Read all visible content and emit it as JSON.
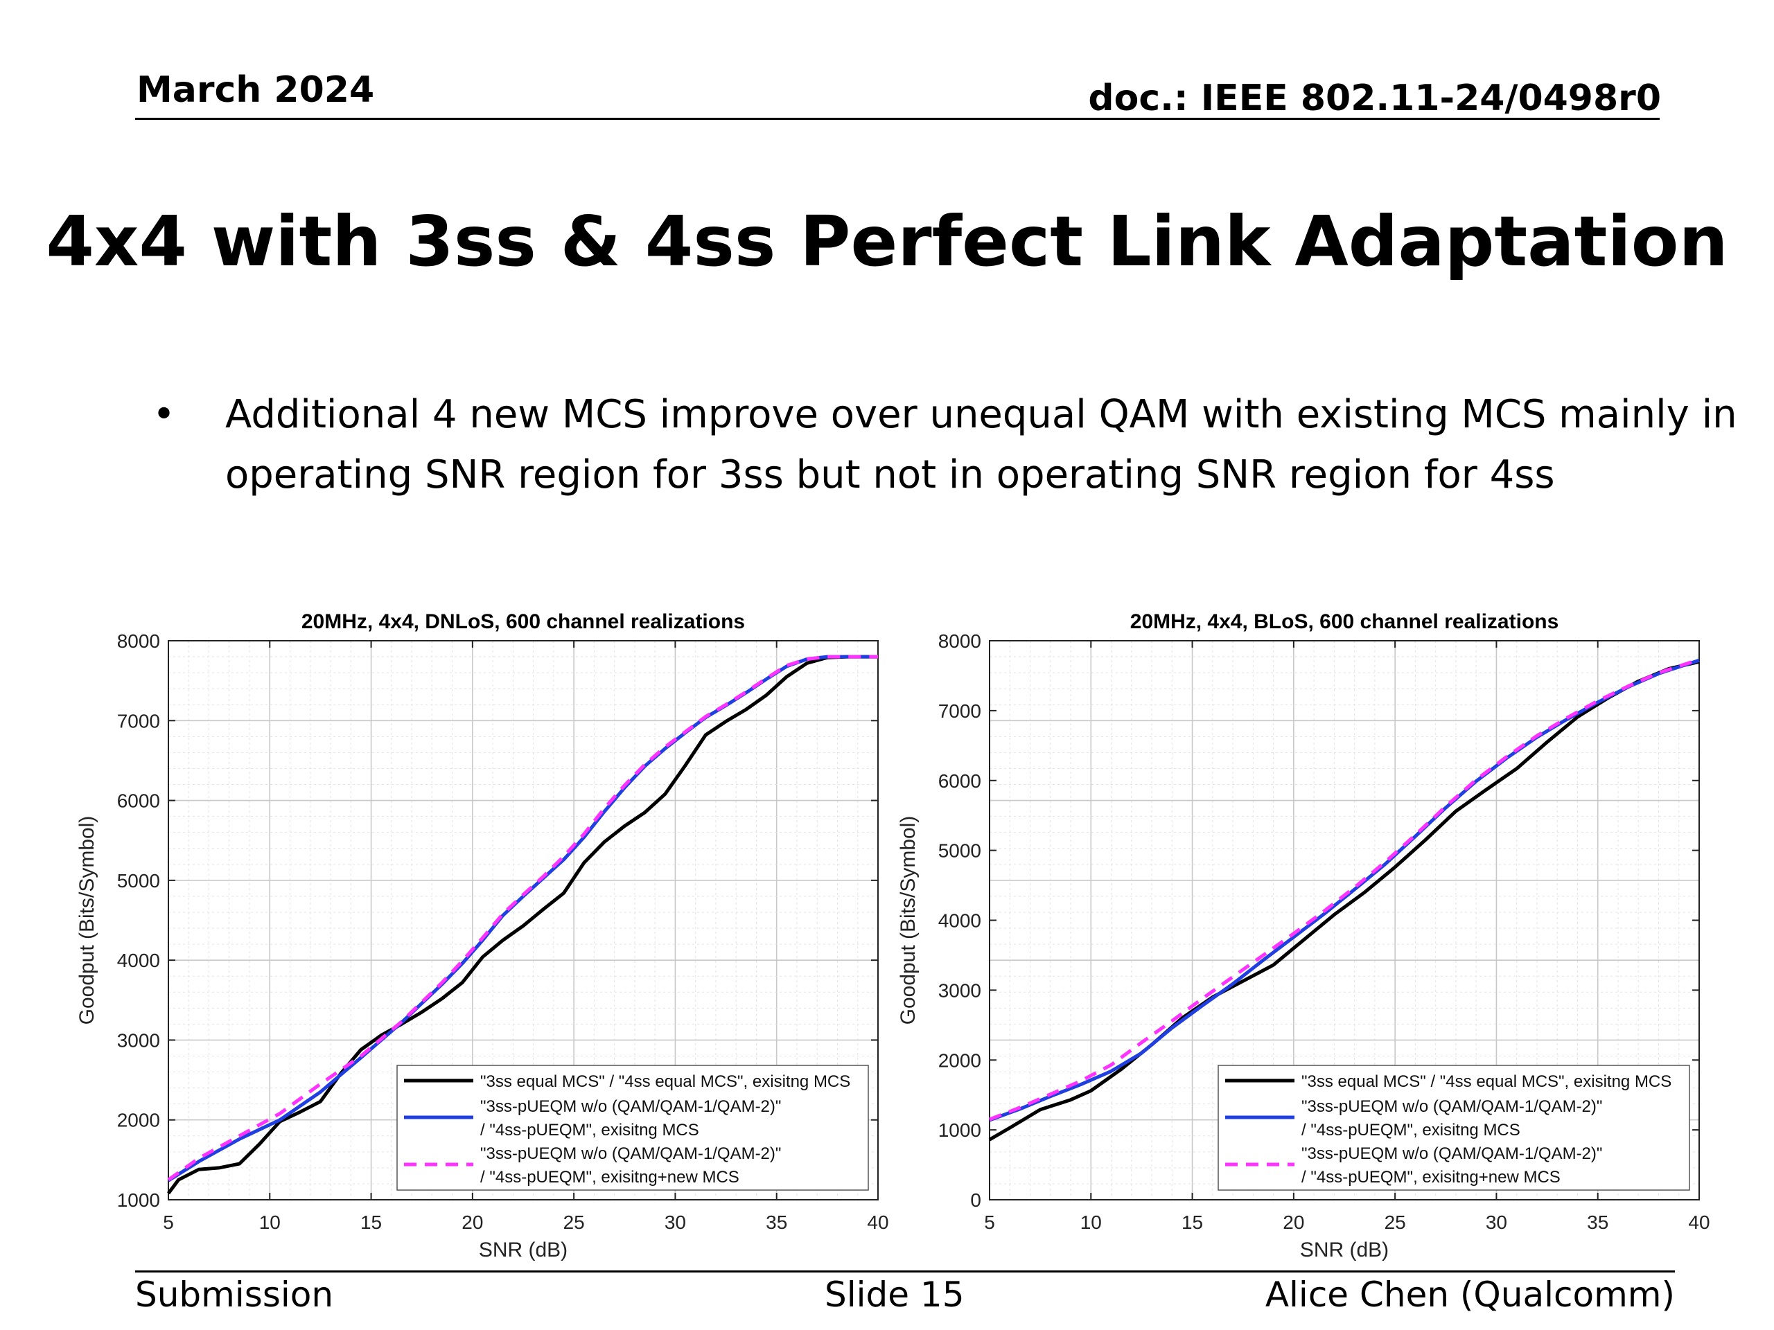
{
  "header": {
    "date": "March 2024",
    "doc": "doc.: IEEE 802.11-24/0498r0"
  },
  "slide": {
    "title": "4x4 with 3ss & 4ss Perfect Link Adaptation",
    "bullet": "Additional 4 new MCS improve over unequal QAM with existing MCS mainly in operating SNR region for 3ss but not in operating SNR region for 4ss"
  },
  "footer": {
    "left": "Submission",
    "center": "Slide 15",
    "right": "Alice Chen (Qualcomm)"
  },
  "colors": {
    "equal": "#000000",
    "pueqm": "#1f3fe0",
    "pueqm_new": "#ff33ff",
    "grid": "#d8d8d8"
  },
  "chart_data": [
    {
      "type": "line",
      "title": "20MHz, 4x4, DNLoS, 600 channel realizations",
      "xlabel": "SNR (dB)",
      "ylabel": "Goodput (Bits/Symbol)",
      "xlim": [
        5,
        40
      ],
      "ylim": [
        1000,
        8000
      ],
      "xticks": [
        5,
        10,
        15,
        20,
        25,
        30,
        35,
        40
      ],
      "yticks": [
        1000,
        2000,
        3000,
        4000,
        5000,
        6000,
        7000,
        8000
      ],
      "grid": true,
      "legend_position": "bottom-right",
      "series": [
        {
          "name": "\"3ss equal MCS\" / \"4ss equal MCS\", exisitng MCS",
          "style": "solid",
          "color": "#000000",
          "x": [
            5,
            5.5,
            6.5,
            7.5,
            8.5,
            9.5,
            10.5,
            11.5,
            12.5,
            13.5,
            14.5,
            15.5,
            16.5,
            17.5,
            18.5,
            19.5,
            20.5,
            21.5,
            22.5,
            23.5,
            24.5,
            25.5,
            26.5,
            27.5,
            28.5,
            29.5,
            30.5,
            31.5,
            32.5,
            33.5,
            34.5,
            35.5,
            36.5,
            37.5,
            38.5,
            40
          ],
          "y": [
            1080,
            1250,
            1380,
            1400,
            1450,
            1700,
            1980,
            2100,
            2230,
            2580,
            2880,
            3060,
            3200,
            3350,
            3520,
            3720,
            4040,
            4250,
            4430,
            4640,
            4840,
            5220,
            5480,
            5680,
            5850,
            6080,
            6440,
            6820,
            6990,
            7140,
            7320,
            7550,
            7720,
            7790,
            7800,
            7800
          ]
        },
        {
          "name": "\"3ss-pUEQM w/o (QAM/QAM-1/QAM-2)\" / \"4ss-pUEQM\", exisitng MCS",
          "style": "solid",
          "color": "#1f3fe0",
          "x": [
            5,
            6.5,
            8.5,
            10.5,
            12.5,
            14.5,
            16.5,
            18.5,
            19.5,
            20.5,
            21.5,
            22.5,
            23.5,
            24.5,
            25.5,
            26.5,
            27.5,
            28.5,
            29.5,
            30.5,
            31.5,
            32.5,
            33.5,
            34.5,
            35.5,
            36.5,
            37.5,
            38.5,
            40
          ],
          "y": [
            1240,
            1480,
            1760,
            2000,
            2350,
            2780,
            3220,
            3700,
            3960,
            4250,
            4560,
            4800,
            5030,
            5260,
            5540,
            5860,
            6160,
            6430,
            6650,
            6850,
            7040,
            7190,
            7350,
            7520,
            7680,
            7770,
            7800,
            7800,
            7800
          ]
        },
        {
          "name": "\"3ss-pUEQM w/o (QAM/QAM-1/QAM-2)\" / \"4ss-pUEQM\", exisitng+new MCS",
          "style": "dashed",
          "color": "#ff33ff",
          "x": [
            5,
            6.5,
            8.5,
            10.5,
            12.5,
            14.5,
            16.5,
            18.5,
            19.5,
            20.5,
            21.5,
            22.5,
            23.5,
            24.5,
            25.5,
            26.5,
            27.5,
            28.5,
            29.5,
            30.5,
            31.5,
            32.5,
            33.5,
            34.5,
            35.5,
            36.5,
            37.5,
            38.5,
            40
          ],
          "y": [
            1250,
            1520,
            1800,
            2080,
            2450,
            2800,
            3230,
            3720,
            3990,
            4280,
            4580,
            4820,
            5050,
            5300,
            5580,
            5900,
            6190,
            6450,
            6670,
            6860,
            7050,
            7200,
            7360,
            7530,
            7690,
            7770,
            7800,
            7800,
            7800
          ]
        }
      ]
    },
    {
      "type": "line",
      "title": "20MHz, 4x4, BLoS, 600 channel realizations",
      "xlabel": "SNR (dB)",
      "ylabel": "Goodput (Bits/Symbol)",
      "xlim": [
        5,
        40
      ],
      "ylim": [
        0,
        8000
      ],
      "xticks": [
        5,
        10,
        15,
        20,
        25,
        30,
        35,
        40
      ],
      "yticks": [
        0,
        1000,
        2000,
        3000,
        4000,
        5000,
        6000,
        7000,
        8000
      ],
      "grid": true,
      "legend_position": "bottom-right",
      "series": [
        {
          "name": "\"3ss equal MCS\" / \"4ss equal MCS\", exisitng MCS",
          "style": "solid",
          "color": "#000000",
          "x": [
            5,
            6,
            7.5,
            9,
            10,
            11.5,
            13,
            14.5,
            16,
            17.5,
            19,
            20.5,
            22,
            23.5,
            25,
            26.5,
            28,
            29.5,
            31,
            32.5,
            34,
            35.5,
            37,
            38.5,
            40
          ],
          "y": [
            860,
            1030,
            1290,
            1430,
            1560,
            1870,
            2220,
            2600,
            2900,
            3130,
            3360,
            3720,
            4080,
            4400,
            4760,
            5150,
            5560,
            5870,
            6170,
            6550,
            6910,
            7180,
            7420,
            7600,
            7700
          ]
        },
        {
          "name": "\"3ss-pUEQM w/o (QAM/QAM-1/QAM-2)\" / \"4ss-pUEQM\", exisitng MCS",
          "style": "solid",
          "color": "#1f3fe0",
          "x": [
            5,
            6.5,
            8,
            9.5,
            11,
            12.5,
            14,
            15.5,
            17,
            18.5,
            20,
            21.5,
            23,
            24.5,
            26,
            27.5,
            29,
            30.5,
            32,
            33.5,
            35,
            36.5,
            38,
            40
          ],
          "y": [
            1140,
            1300,
            1480,
            1650,
            1840,
            2100,
            2460,
            2780,
            3090,
            3430,
            3760,
            4090,
            4440,
            4800,
            5200,
            5610,
            5990,
            6320,
            6620,
            6880,
            7120,
            7340,
            7530,
            7720
          ]
        },
        {
          "name": "\"3ss-pUEQM w/o (QAM/QAM-1/QAM-2)\" / \"4ss-pUEQM\", exisitng+new MCS",
          "style": "dashed",
          "color": "#ff33ff",
          "x": [
            5,
            6.5,
            8,
            9.5,
            11,
            12.5,
            14,
            15.5,
            17,
            18.5,
            20,
            21.5,
            23,
            24.5,
            26,
            27.5,
            29,
            30.5,
            32,
            33.5,
            35,
            36.5,
            38,
            40
          ],
          "y": [
            1150,
            1320,
            1510,
            1700,
            1930,
            2250,
            2560,
            2880,
            3190,
            3500,
            3810,
            4130,
            4470,
            4830,
            5220,
            5630,
            6010,
            6340,
            6640,
            6900,
            7140,
            7350,
            7540,
            7730
          ]
        }
      ]
    }
  ]
}
